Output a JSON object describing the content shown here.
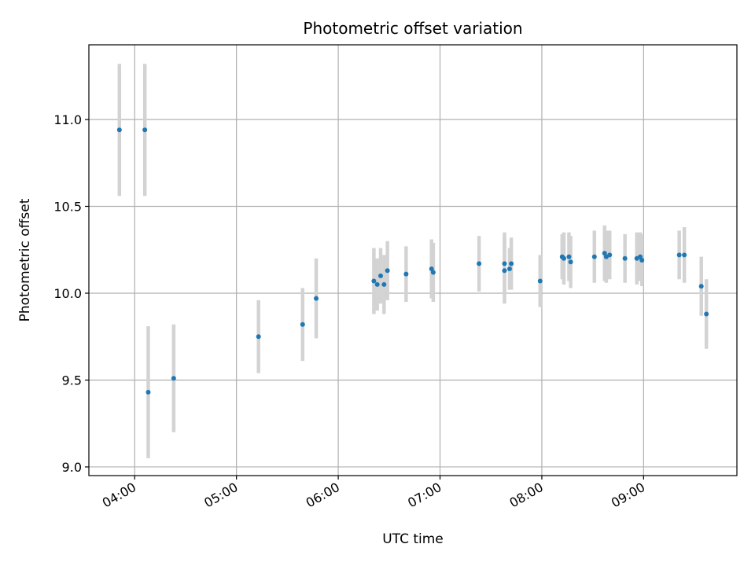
{
  "chart_data": {
    "type": "scatter",
    "title": "Photometric offset variation",
    "xlabel": "UTC time",
    "ylabel": "Photometric offset",
    "xlim": [
      "03:33",
      "09:55"
    ],
    "ylim": [
      8.95,
      11.43
    ],
    "x_ticks": [
      "04:00",
      "05:00",
      "06:00",
      "07:00",
      "08:00",
      "09:00"
    ],
    "y_ticks": [
      "9.0",
      "9.5",
      "10.0",
      "10.5",
      "11.0"
    ],
    "grid": true,
    "colors": {
      "point": "#1f77b4",
      "errorbar": "#d3d3d3",
      "grid": "#b0b0b0"
    },
    "series": [
      {
        "points": [
          {
            "x": "03:51",
            "y": 10.94,
            "err": 0.38
          },
          {
            "x": "04:06",
            "y": 10.94,
            "err": 0.38
          },
          {
            "x": "04:08",
            "y": 9.43,
            "err": 0.38
          },
          {
            "x": "04:23",
            "y": 9.51,
            "err": 0.31
          },
          {
            "x": "05:13",
            "y": 9.75,
            "err": 0.21
          },
          {
            "x": "05:39",
            "y": 9.82,
            "err": 0.21
          },
          {
            "x": "05:47",
            "y": 9.97,
            "err": 0.23
          },
          {
            "x": "06:21",
            "y": 10.07,
            "err": 0.19
          },
          {
            "x": "06:23",
            "y": 10.05,
            "err": 0.15
          },
          {
            "x": "06:25",
            "y": 10.1,
            "err": 0.16
          },
          {
            "x": "06:27",
            "y": 10.05,
            "err": 0.17
          },
          {
            "x": "06:29",
            "y": 10.13,
            "err": 0.17
          },
          {
            "x": "06:40",
            "y": 10.11,
            "err": 0.16
          },
          {
            "x": "06:55",
            "y": 10.14,
            "err": 0.17
          },
          {
            "x": "06:56",
            "y": 10.12,
            "err": 0.17
          },
          {
            "x": "07:23",
            "y": 10.17,
            "err": 0.16
          },
          {
            "x": "07:38",
            "y": 10.13,
            "err": 0.19
          },
          {
            "x": "07:38",
            "y": 10.17,
            "err": 0.18
          },
          {
            "x": "07:41",
            "y": 10.14,
            "err": 0.12
          },
          {
            "x": "07:42",
            "y": 10.17,
            "err": 0.15
          },
          {
            "x": "07:59",
            "y": 10.07,
            "err": 0.15
          },
          {
            "x": "08:12",
            "y": 10.21,
            "err": 0.13
          },
          {
            "x": "08:13",
            "y": 10.2,
            "err": 0.15
          },
          {
            "x": "08:16",
            "y": 10.21,
            "err": 0.14
          },
          {
            "x": "08:17",
            "y": 10.18,
            "err": 0.15
          },
          {
            "x": "08:31",
            "y": 10.21,
            "err": 0.15
          },
          {
            "x": "08:37",
            "y": 10.23,
            "err": 0.16
          },
          {
            "x": "08:38",
            "y": 10.21,
            "err": 0.15
          },
          {
            "x": "08:40",
            "y": 10.22,
            "err": 0.14
          },
          {
            "x": "08:49",
            "y": 10.2,
            "err": 0.14
          },
          {
            "x": "08:56",
            "y": 10.2,
            "err": 0.15
          },
          {
            "x": "08:58",
            "y": 10.21,
            "err": 0.14
          },
          {
            "x": "08:59",
            "y": 10.19,
            "err": 0.15
          },
          {
            "x": "09:21",
            "y": 10.22,
            "err": 0.14
          },
          {
            "x": "09:24",
            "y": 10.22,
            "err": 0.16
          },
          {
            "x": "09:34",
            "y": 10.04,
            "err": 0.17
          },
          {
            "x": "09:37",
            "y": 9.88,
            "err": 0.2
          }
        ]
      }
    ]
  }
}
